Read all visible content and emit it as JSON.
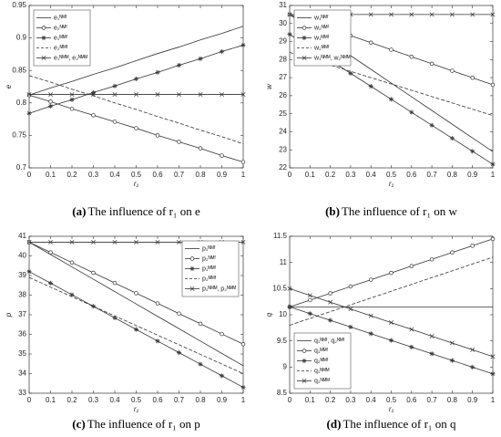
{
  "chart_data": [
    {
      "type": "line",
      "caption_label": "(a)",
      "caption": "The influence of r₁ on e",
      "xlabel": "r₁",
      "ylabel": "e",
      "x": [
        0,
        0.1,
        0.2,
        0.3,
        0.4,
        0.5,
        0.6,
        0.7,
        0.8,
        0.9,
        1
      ],
      "xlim": [
        0,
        1
      ],
      "xticks": [
        0,
        0.1,
        0.2,
        0.3,
        0.4,
        0.5,
        0.6,
        0.7,
        0.8,
        0.9,
        1
      ],
      "ylim": [
        0.7,
        0.95
      ],
      "yticks": [
        0.7,
        0.75,
        0.8,
        0.85,
        0.9,
        0.95
      ],
      "legend": "upper left",
      "series": [
        {
          "name": "e₁ᴺᴹᶠ",
          "color": "#333333",
          "marker": "none",
          "dash": false,
          "values": [
            0.812,
            0.823,
            0.833,
            0.844,
            0.854,
            0.865,
            0.876,
            0.886,
            0.897,
            0.907,
            0.918
          ]
        },
        {
          "name": "e₂ᴺᴹᶠ",
          "color": "#333333",
          "marker": "circle",
          "dash": false,
          "values": [
            0.812,
            0.802,
            0.791,
            0.781,
            0.771,
            0.761,
            0.75,
            0.74,
            0.73,
            0.719,
            0.709
          ]
        },
        {
          "name": "e₁ᴹᴹᶠ",
          "color": "#333333",
          "marker": "star",
          "dash": false,
          "values": [
            0.784,
            0.795,
            0.805,
            0.816,
            0.826,
            0.837,
            0.847,
            0.858,
            0.868,
            0.879,
            0.889
          ]
        },
        {
          "name": "e₂ᴹᴹᶠ",
          "color": "#333333",
          "marker": "none",
          "dash": true,
          "values": [
            0.842,
            0.832,
            0.821,
            0.811,
            0.8,
            0.79,
            0.779,
            0.769,
            0.758,
            0.748,
            0.737
          ]
        },
        {
          "name": "e₁ᴺᴹᴹ, e₂ᴺᴹᴹ",
          "color": "#333333",
          "marker": "x",
          "dash": false,
          "values": [
            0.813,
            0.813,
            0.813,
            0.813,
            0.813,
            0.813,
            0.813,
            0.813,
            0.813,
            0.813,
            0.813
          ]
        }
      ]
    },
    {
      "type": "line",
      "caption_label": "(b)",
      "caption": "The influence of r₁ on w",
      "xlabel": "r₁",
      "ylabel": "w",
      "x": [
        0,
        0.1,
        0.2,
        0.3,
        0.4,
        0.5,
        0.6,
        0.7,
        0.8,
        0.9,
        1
      ],
      "xlim": [
        0,
        1
      ],
      "xticks": [
        0,
        0.1,
        0.2,
        0.3,
        0.4,
        0.5,
        0.6,
        0.7,
        0.8,
        0.9,
        1
      ],
      "ylim": [
        22,
        31
      ],
      "yticks": [
        22,
        23,
        24,
        25,
        26,
        27,
        28,
        29,
        30,
        31
      ],
      "legend": "upper left",
      "series": [
        {
          "name": "w₁ᴺᴹᶠ",
          "color": "#333333",
          "marker": "none",
          "dash": false,
          "values": [
            30.5,
            29.74,
            28.98,
            28.22,
            27.46,
            26.7,
            25.94,
            25.18,
            24.42,
            23.66,
            22.9
          ]
        },
        {
          "name": "w₂ᴺᴹᶠ",
          "color": "#333333",
          "marker": "circle",
          "dash": false,
          "values": [
            30.5,
            30.11,
            29.72,
            29.33,
            28.94,
            28.55,
            28.16,
            27.77,
            27.38,
            26.99,
            26.6
          ]
        },
        {
          "name": "w₁ᴹᴹᶠ",
          "color": "#333333",
          "marker": "star",
          "dash": false,
          "values": [
            29.4,
            28.68,
            27.96,
            27.24,
            26.52,
            25.8,
            25.08,
            24.36,
            23.64,
            22.92,
            22.2
          ]
        },
        {
          "name": "w₂ᴹᴹᶠ",
          "color": "#333333",
          "marker": "none",
          "dash": true,
          "values": [
            28.4,
            28.05,
            27.7,
            27.35,
            27,
            26.65,
            26.3,
            25.95,
            25.6,
            25.25,
            24.9
          ]
        },
        {
          "name": "w₁ᴺᴹᴹ, w₂ᴺᴹᴹ",
          "color": "#333333",
          "marker": "x",
          "dash": false,
          "values": [
            30.5,
            30.5,
            30.5,
            30.5,
            30.5,
            30.5,
            30.5,
            30.5,
            30.5,
            30.5,
            30.5
          ]
        }
      ]
    },
    {
      "type": "line",
      "caption_label": "(c)",
      "caption": "The influence of r₁ on p",
      "xlabel": "r₁",
      "ylabel": "p",
      "x": [
        0,
        0.1,
        0.2,
        0.3,
        0.4,
        0.5,
        0.6,
        0.7,
        0.8,
        0.9,
        1
      ],
      "xlim": [
        0,
        1
      ],
      "xticks": [
        0,
        0.1,
        0.2,
        0.3,
        0.4,
        0.5,
        0.6,
        0.7,
        0.8,
        0.9,
        1
      ],
      "ylim": [
        33,
        41
      ],
      "yticks": [
        33,
        34,
        35,
        36,
        37,
        38,
        39,
        40,
        41
      ],
      "legend": "upper right",
      "series": [
        {
          "name": "p₁ᴺᴹᶠ",
          "color": "#333333",
          "marker": "none",
          "dash": false,
          "values": [
            40.7,
            40.07,
            39.44,
            38.81,
            38.18,
            37.55,
            36.92,
            36.29,
            35.66,
            35.03,
            34.4
          ]
        },
        {
          "name": "p₂ᴺᴹᶠ",
          "color": "#333333",
          "marker": "circle",
          "dash": false,
          "values": [
            40.7,
            40.18,
            39.66,
            39.14,
            38.62,
            38.1,
            37.58,
            37.06,
            36.54,
            36.02,
            35.5
          ]
        },
        {
          "name": "p₁ᴹᴹᶠ",
          "color": "#333333",
          "marker": "star",
          "dash": false,
          "values": [
            39.2,
            38.61,
            38.02,
            37.43,
            36.84,
            36.25,
            35.66,
            35.07,
            34.48,
            33.89,
            33.3
          ]
        },
        {
          "name": "p₂ᴹᴹᶠ",
          "color": "#333333",
          "marker": "none",
          "dash": true,
          "values": [
            38.9,
            38.41,
            37.92,
            37.43,
            36.94,
            36.45,
            35.96,
            35.47,
            34.98,
            34.49,
            34
          ]
        },
        {
          "name": "p₁ᴺᴹᴹ, p₂ᴺᴹᴹ",
          "color": "#333333",
          "marker": "x",
          "dash": false,
          "values": [
            40.7,
            40.7,
            40.7,
            40.7,
            40.7,
            40.7,
            40.7,
            40.7,
            40.7,
            40.7,
            40.7
          ]
        }
      ]
    },
    {
      "type": "line",
      "caption_label": "(d)",
      "caption": "The influence of r₁ on q",
      "xlabel": "r₁",
      "ylabel": "q",
      "x": [
        0,
        0.1,
        0.2,
        0.3,
        0.4,
        0.5,
        0.6,
        0.7,
        0.8,
        0.9,
        1
      ],
      "xlim": [
        0,
        1
      ],
      "xticks": [
        0,
        0.1,
        0.2,
        0.3,
        0.4,
        0.5,
        0.6,
        0.7,
        0.8,
        0.9,
        1
      ],
      "ylim": [
        8.5,
        11.5
      ],
      "yticks": [
        8.5,
        9,
        9.5,
        10,
        10.5,
        11,
        11.5
      ],
      "legend": "lower left",
      "series": [
        {
          "name": "q₁ᴺᴹᶠ, q₂ᴺᴹᶠ",
          "color": "#333333",
          "marker": "none",
          "dash": false,
          "values": [
            10.15,
            10.15,
            10.15,
            10.15,
            10.15,
            10.15,
            10.15,
            10.15,
            10.15,
            10.15,
            10.15
          ]
        },
        {
          "name": "q₁ᴹᴹᶠ",
          "color": "#333333",
          "marker": "circle",
          "dash": false,
          "values": [
            10.15,
            10.28,
            10.41,
            10.54,
            10.67,
            10.8,
            10.93,
            11.06,
            11.19,
            11.32,
            11.45
          ]
        },
        {
          "name": "q₂ᴹᴹᶠ",
          "color": "#333333",
          "marker": "star",
          "dash": false,
          "values": [
            10.15,
            10.022,
            9.894,
            9.766,
            9.638,
            9.51,
            9.382,
            9.254,
            9.126,
            8.998,
            8.87
          ]
        },
        {
          "name": "q₁ᴺᴹᴹ",
          "color": "#333333",
          "marker": "none",
          "dash": true,
          "values": [
            9.8,
            9.93,
            10.06,
            10.19,
            10.32,
            10.45,
            10.58,
            10.71,
            10.84,
            10.97,
            11.1
          ]
        },
        {
          "name": "q₂ᴺᴹᴹ",
          "color": "#333333",
          "marker": "x",
          "dash": false,
          "values": [
            10.5,
            10.37,
            10.24,
            10.11,
            9.98,
            9.85,
            9.72,
            9.59,
            9.46,
            9.33,
            9.2
          ]
        }
      ]
    }
  ]
}
